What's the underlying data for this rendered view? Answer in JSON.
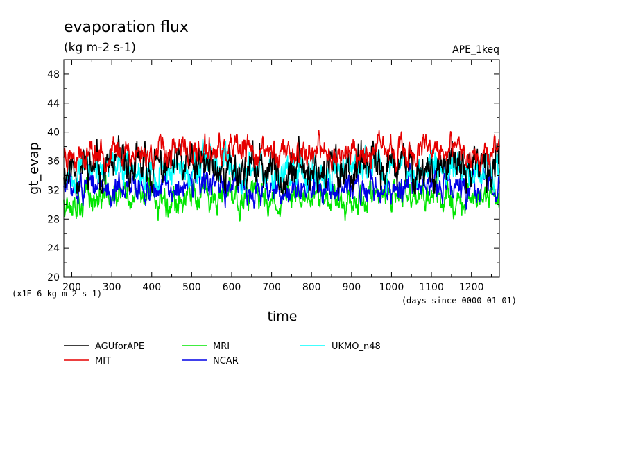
{
  "chart_data": {
    "type": "line",
    "title": "evaporation flux",
    "subtitle": "(kg m-2 s-1)",
    "run_label": "APE_1keq",
    "xlabel": "time",
    "ylabel": "gt_evap",
    "x_unit_note": "(days since 0000-01-01)",
    "y_unit_note": "(x1E-6 kg m-2 s-1)",
    "xlim": [
      180,
      1270
    ],
    "ylim": [
      20,
      50
    ],
    "x_ticks": [
      200,
      300,
      400,
      500,
      600,
      700,
      800,
      900,
      1000,
      1100,
      1200
    ],
    "y_ticks": [
      20,
      24,
      28,
      32,
      36,
      40,
      44,
      48
    ],
    "grid": false,
    "legend_position": "bottom",
    "series": [
      {
        "name": "AGUforAPE",
        "color": "#000000",
        "mean": 35.0,
        "amp": 2.4,
        "min": 31.5,
        "max": 40.0,
        "seed": 11
      },
      {
        "name": "MIT",
        "color": "#e60000",
        "mean": 37.2,
        "amp": 1.6,
        "min": 34.5,
        "max": 41.0,
        "seed": 23
      },
      {
        "name": "MRI",
        "color": "#00e600",
        "mean": 31.0,
        "amp": 1.8,
        "min": 27.2,
        "max": 35.5,
        "seed": 37
      },
      {
        "name": "NCAR",
        "color": "#0000e6",
        "mean": 32.3,
        "amp": 1.7,
        "min": 29.4,
        "max": 36.0,
        "seed": 51
      },
      {
        "name": "UKMO_n48",
        "color": "#00ffff",
        "mean": 35.0,
        "amp": 1.9,
        "min": 31.5,
        "max": 40.0,
        "seed": 67
      }
    ]
  }
}
